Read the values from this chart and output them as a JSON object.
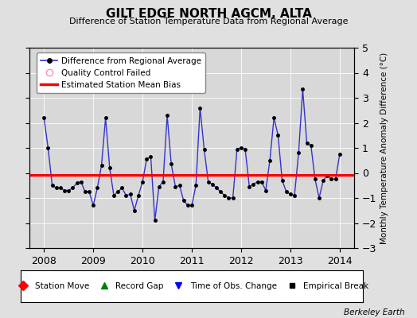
{
  "title": "GILT EDGE NORTH AGCM, ALTA",
  "subtitle": "Difference of Station Temperature Data from Regional Average",
  "ylabel_right": "Monthly Temperature Anomaly Difference (°C)",
  "xlim": [
    2007.7,
    2014.3
  ],
  "ylim": [
    -3,
    5
  ],
  "yticks": [
    -3,
    -2,
    -1,
    0,
    1,
    2,
    3,
    4,
    5
  ],
  "xticks": [
    2008,
    2009,
    2010,
    2011,
    2012,
    2013,
    2014
  ],
  "bias_value": -0.07,
  "background_color": "#e0e0e0",
  "plot_bg_color": "#d8d8d8",
  "line_color": "#3333cc",
  "marker_color": "#000000",
  "bias_color": "#ff0000",
  "legend1_labels": [
    "Difference from Regional Average",
    "Quality Control Failed",
    "Estimated Station Mean Bias"
  ],
  "legend2_labels": [
    "Station Move",
    "Record Gap",
    "Time of Obs. Change",
    "Empirical Break"
  ],
  "data_x": [
    2008.0,
    2008.083,
    2008.167,
    2008.25,
    2008.333,
    2008.417,
    2008.5,
    2008.583,
    2008.667,
    2008.75,
    2008.833,
    2008.917,
    2009.0,
    2009.083,
    2009.167,
    2009.25,
    2009.333,
    2009.417,
    2009.5,
    2009.583,
    2009.667,
    2009.75,
    2009.833,
    2009.917,
    2010.0,
    2010.083,
    2010.167,
    2010.25,
    2010.333,
    2010.417,
    2010.5,
    2010.583,
    2010.667,
    2010.75,
    2010.833,
    2010.917,
    2011.0,
    2011.083,
    2011.167,
    2011.25,
    2011.333,
    2011.417,
    2011.5,
    2011.583,
    2011.667,
    2011.75,
    2011.833,
    2011.917,
    2012.0,
    2012.083,
    2012.167,
    2012.25,
    2012.333,
    2012.417,
    2012.5,
    2012.583,
    2012.667,
    2012.75,
    2012.833,
    2012.917,
    2013.0,
    2013.083,
    2013.167,
    2013.25,
    2013.333,
    2013.417,
    2013.5,
    2013.583,
    2013.667,
    2013.75,
    2013.833,
    2013.917,
    2014.0
  ],
  "data_y": [
    2.2,
    1.0,
    -0.5,
    -0.6,
    -0.6,
    -0.7,
    -0.7,
    -0.6,
    -0.4,
    -0.35,
    -0.75,
    -0.75,
    -1.3,
    -0.6,
    0.3,
    2.2,
    0.2,
    -0.9,
    -0.75,
    -0.6,
    -0.9,
    -0.85,
    -1.5,
    -0.9,
    -0.35,
    0.55,
    0.65,
    -1.9,
    -0.55,
    -0.35,
    2.3,
    0.35,
    -0.55,
    -0.5,
    -1.1,
    -1.3,
    -1.3,
    -0.5,
    2.6,
    0.95,
    -0.35,
    -0.45,
    -0.6,
    -0.75,
    -0.9,
    -1.0,
    -1.0,
    0.95,
    1.0,
    0.95,
    -0.55,
    -0.45,
    -0.35,
    -0.35,
    -0.7,
    0.5,
    2.2,
    1.5,
    -0.3,
    -0.75,
    -0.85,
    -0.9,
    0.8,
    3.35,
    1.2,
    1.1,
    -0.25,
    -1.0,
    -0.3,
    -0.1,
    -0.25,
    -0.25,
    0.75
  ]
}
